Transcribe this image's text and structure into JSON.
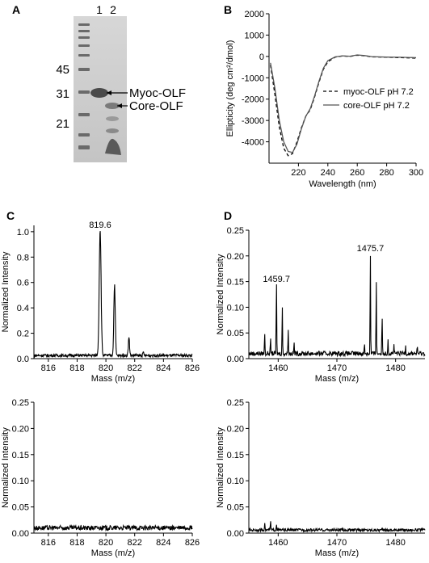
{
  "panels": {
    "A": "A",
    "B": "B",
    "C": "C",
    "D": "D",
    "E": "C",
    "F": "D"
  },
  "gel": {
    "lane_labels": [
      "1",
      "2"
    ],
    "markers": [
      "45",
      "31",
      "21"
    ],
    "band_labels": [
      "Myoc-OLF",
      "Core-OLF"
    ]
  },
  "chart_data": [
    {
      "type": "line",
      "panel": "B",
      "title": "",
      "xlabel": "Wavelength (nm)",
      "ylabel": "Ellipticity (deg cm²/dmol)",
      "xlim": [
        200,
        300
      ],
      "ylim": [
        -5000,
        2000
      ],
      "xticks": [
        220,
        240,
        260,
        280,
        300
      ],
      "yticks": [
        2000,
        1000,
        0,
        -1000,
        -2000,
        -3000,
        -4000
      ],
      "legend_position": "center-right",
      "series": [
        {
          "name": "myoc-OLF pH 7.2",
          "style": "dashed",
          "x": [
            201,
            204,
            207,
            210,
            213,
            216,
            219,
            222,
            225,
            228,
            231,
            234,
            237,
            240,
            245,
            250,
            255,
            260,
            265,
            270,
            280,
            290,
            300
          ],
          "y": [
            -400,
            -1800,
            -3300,
            -4300,
            -4650,
            -4550,
            -4000,
            -3350,
            -2800,
            -2500,
            -1900,
            -1200,
            -600,
            -250,
            -30,
            20,
            0,
            60,
            30,
            -20,
            -40,
            -60,
            -80
          ]
        },
        {
          "name": "core-OLF pH 7.2",
          "style": "solid",
          "x": [
            201,
            204,
            207,
            210,
            213,
            216,
            219,
            222,
            225,
            228,
            231,
            234,
            237,
            240,
            245,
            250,
            255,
            260,
            265,
            270,
            280,
            290,
            300
          ],
          "y": [
            -300,
            -1500,
            -3000,
            -4000,
            -4450,
            -4500,
            -4100,
            -3400,
            -2800,
            -2450,
            -1850,
            -1150,
            -550,
            -200,
            -20,
            30,
            10,
            70,
            40,
            -10,
            -30,
            -40,
            -60
          ]
        }
      ]
    },
    {
      "type": "line",
      "panel": "C",
      "xlabel": "Mass (m/z)",
      "ylabel": "Normalized Intensity",
      "xlim": [
        815,
        826
      ],
      "ylim": [
        0,
        1.05
      ],
      "xticks": [
        816,
        818,
        820,
        822,
        824,
        826
      ],
      "yticks": [
        0.0,
        0.2,
        0.4,
        0.6,
        0.8,
        1.0
      ],
      "peak_label": "819.6",
      "peaks": [
        {
          "x": 819.6,
          "y": 1.0,
          "w": 0.09
        },
        {
          "x": 820.6,
          "y": 0.56,
          "w": 0.07
        },
        {
          "x": 821.6,
          "y": 0.14,
          "w": 0.06
        },
        {
          "x": 822.6,
          "y": 0.02,
          "w": 0.05
        }
      ],
      "baseline": 0.025
    },
    {
      "type": "line",
      "panel": "D",
      "xlabel": "Mass (m/z)",
      "ylabel": "Normalized Intensity",
      "xlim": [
        1455,
        1485
      ],
      "ylim": [
        0,
        0.25
      ],
      "xticks": [
        1460,
        1470,
        1480
      ],
      "yticks": [
        0.0,
        0.05,
        0.1,
        0.15,
        0.2,
        0.25
      ],
      "peak_labels": [
        {
          "text": "1459.7",
          "x": 1459.7,
          "y": 0.14
        },
        {
          "text": "1475.7",
          "x": 1475.7,
          "y": 0.2
        }
      ],
      "peaks": [
        {
          "x": 1457.7,
          "y": 0.043
        },
        {
          "x": 1458.7,
          "y": 0.03
        },
        {
          "x": 1459.7,
          "y": 0.14
        },
        {
          "x": 1460.7,
          "y": 0.096
        },
        {
          "x": 1461.7,
          "y": 0.053
        },
        {
          "x": 1462.7,
          "y": 0.02
        },
        {
          "x": 1474.7,
          "y": 0.018
        },
        {
          "x": 1475.7,
          "y": 0.2
        },
        {
          "x": 1476.7,
          "y": 0.15
        },
        {
          "x": 1477.7,
          "y": 0.075
        },
        {
          "x": 1478.7,
          "y": 0.03
        },
        {
          "x": 1479.7,
          "y": 0.015
        },
        {
          "x": 1481.7,
          "y": 0.015
        },
        {
          "x": 1483.7,
          "y": 0.012
        }
      ],
      "baseline": 0.01
    },
    {
      "type": "line",
      "panel": "C-lower",
      "xlabel": "Mass (m/z)",
      "ylabel": "Normalized Intensity",
      "xlim": [
        815,
        826
      ],
      "ylim": [
        0,
        0.25
      ],
      "xticks": [
        816,
        818,
        820,
        822,
        824,
        826
      ],
      "yticks": [
        0.0,
        0.05,
        0.1,
        0.15,
        0.2,
        0.25
      ],
      "peaks": [],
      "baseline": 0.01
    },
    {
      "type": "line",
      "panel": "D-lower",
      "xlabel": "Mass (m/z)",
      "ylabel": "Normalized Intensity",
      "xlim": [
        1455,
        1485
      ],
      "ylim": [
        0,
        0.25
      ],
      "xticks": [
        1460,
        1470,
        1480
      ],
      "yticks": [
        0.0,
        0.05,
        0.1,
        0.15,
        0.2,
        0.25
      ],
      "peaks": [
        {
          "x": 1457.7,
          "y": 0.016
        },
        {
          "x": 1458.7,
          "y": 0.018
        },
        {
          "x": 1459.7,
          "y": 0.012
        }
      ],
      "baseline": 0.006
    }
  ]
}
